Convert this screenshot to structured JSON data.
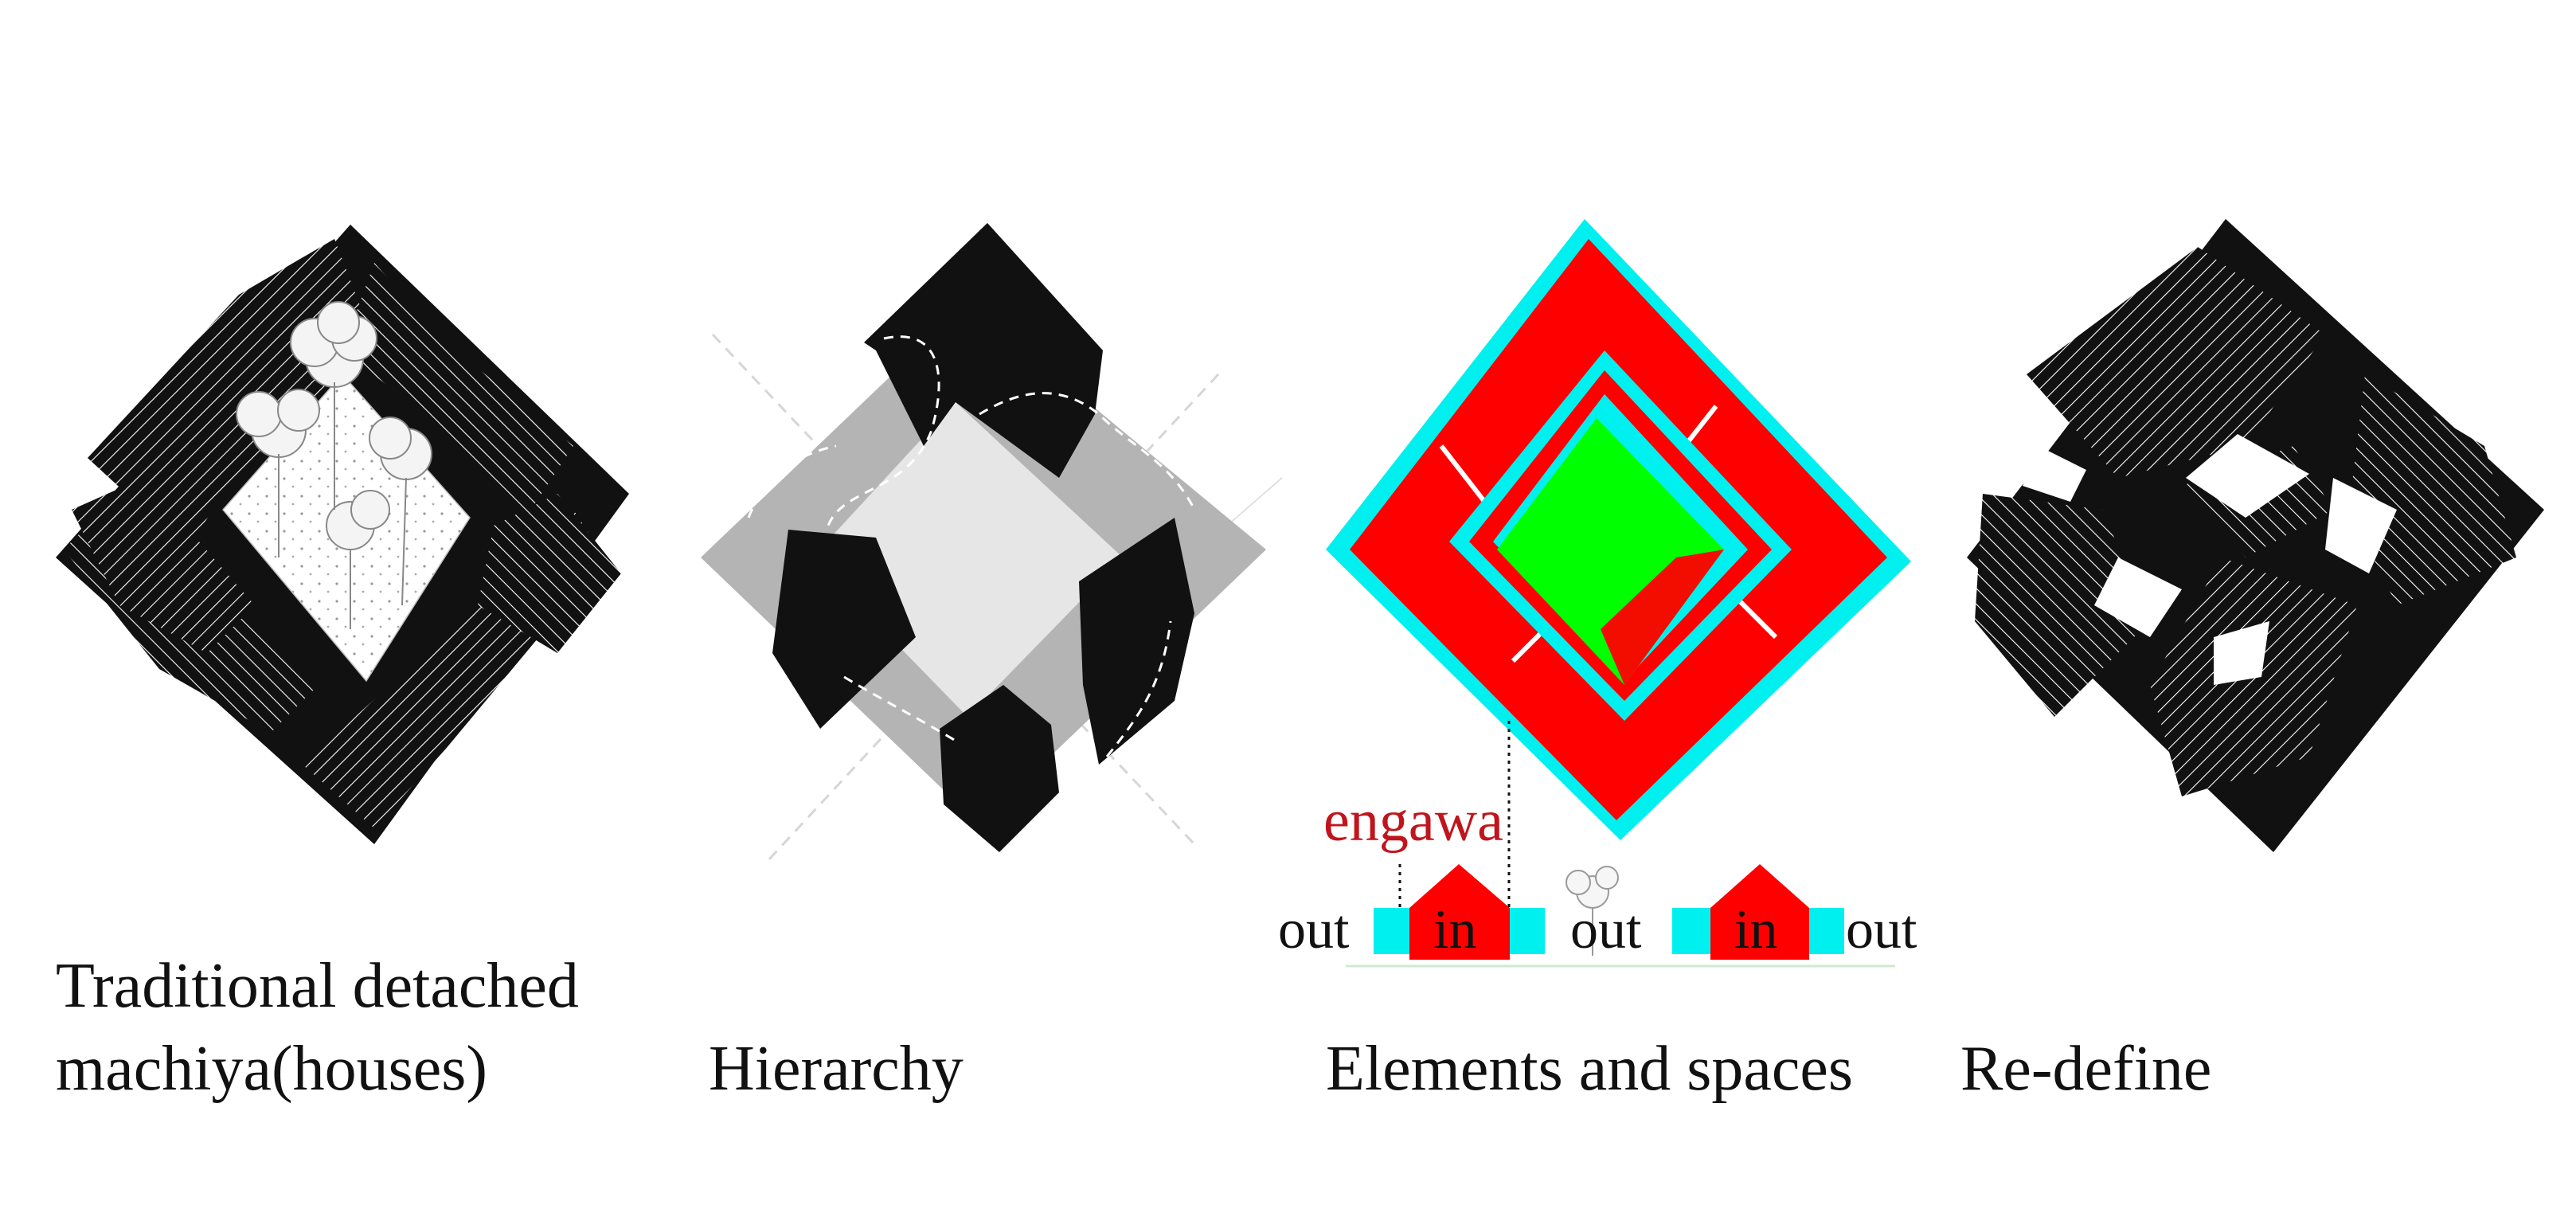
{
  "panels": [
    {
      "id": "traditional",
      "caption_lines": [
        "Traditional detached",
        "machiya(houses)"
      ]
    },
    {
      "id": "hierarchy",
      "caption_lines": [
        "Hierarchy"
      ]
    },
    {
      "id": "elements",
      "caption_lines": [
        "Elements and spaces"
      ]
    },
    {
      "id": "redefine",
      "caption_lines": [
        "Re-define"
      ]
    }
  ],
  "section": {
    "engawa_label": "engawa",
    "labels": [
      "out",
      "in",
      "out",
      "in",
      "out"
    ]
  },
  "colors": {
    "roof_black": "#111111",
    "roof_line": "#ffffff",
    "hier_grey": "#b4b4b4",
    "hier_light": "#e6e6e6",
    "house_red": "#ff0000",
    "engawa_cyan": "#00f0f0",
    "garden_green": "#00ff00",
    "engawa_text": "#c0151c"
  }
}
